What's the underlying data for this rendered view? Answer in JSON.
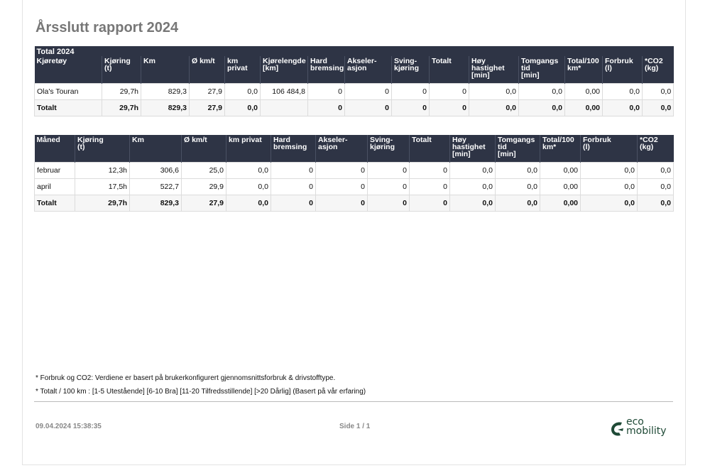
{
  "report": {
    "title": "Årsslutt rapport 2024"
  },
  "vehicle_table": {
    "caption": "Total 2024",
    "headers": [
      "Kjøretøy",
      "Kjøring\n(t)",
      "Km",
      "Ø km/t",
      "km\nprivat",
      "Kjørelengde\n[km]",
      "Hard\nbremsing",
      "Akseler-\nasjon",
      "Sving-\nkjøring",
      "Totalt",
      "Høy\nhastighet\n[min]",
      "Tomgangs\ntid\n[min]",
      "Total/100\nkm*",
      "Forbruk\n(l)",
      "*CO2\n(kg)"
    ],
    "rows": [
      [
        "Ola's Touran",
        "29,7h",
        "829,3",
        "27,9",
        "0,0",
        "106 484,8",
        "0",
        "0",
        "0",
        "0",
        "0,0",
        "0,0",
        "0,00",
        "0,0",
        "0,0"
      ]
    ],
    "total": [
      "Totalt",
      "29,7h",
      "829,3",
      "27,9",
      "0,0",
      "",
      "0",
      "0",
      "0",
      "0",
      "0,0",
      "0,0",
      "0,00",
      "0,0",
      "0,0"
    ]
  },
  "month_table": {
    "headers": [
      "Måned",
      "Kjøring\n(t)",
      "Km",
      "Ø km/t",
      "km privat",
      "Hard\nbremsing",
      "Akseler-\nasjon",
      "Sving-\nkjøring",
      "Totalt",
      "Høy\nhastighet\n[min]",
      "Tomgangs\ntid\n[min]",
      "Total/100\nkm*",
      "Forbruk\n(l)",
      "*CO2\n(kg)"
    ],
    "rows": [
      [
        "februar",
        "12,3h",
        "306,6",
        "25,0",
        "0,0",
        "0",
        "0",
        "0",
        "0",
        "0,0",
        "0,0",
        "0,00",
        "0,0",
        "0,0"
      ],
      [
        "april",
        "17,5h",
        "522,7",
        "29,9",
        "0,0",
        "0",
        "0",
        "0",
        "0",
        "0,0",
        "0,0",
        "0,00",
        "0,0",
        "0,0"
      ]
    ],
    "total": [
      "Totalt",
      "29,7h",
      "829,3",
      "27,9",
      "0,0",
      "0",
      "0",
      "0",
      "0",
      "0,0",
      "0,0",
      "0,00",
      "0,0",
      "0,0"
    ]
  },
  "notes": {
    "note1": "* Forbruk og CO2: Verdiene er basert på brukerkonfigurert gjennomsnittsforbruk & drivstofftype.",
    "note2": "* Totalt / 100 km : [1-5 Utestående] [6-10 Bra] [11-20 Tilfredsstillende] [>20 Dårlig] (Basert på vår erfaring)"
  },
  "footer": {
    "timestamp": "09.04.2024 15:38:35",
    "page": "Side 1 / 1",
    "logo_line1": "eco",
    "logo_line2": "mobility",
    "logo_icon": "eco-leaf-icon",
    "brand_color": "#1f4a36"
  },
  "colors": {
    "header_bg": "#2e3445",
    "title": "#777777"
  }
}
